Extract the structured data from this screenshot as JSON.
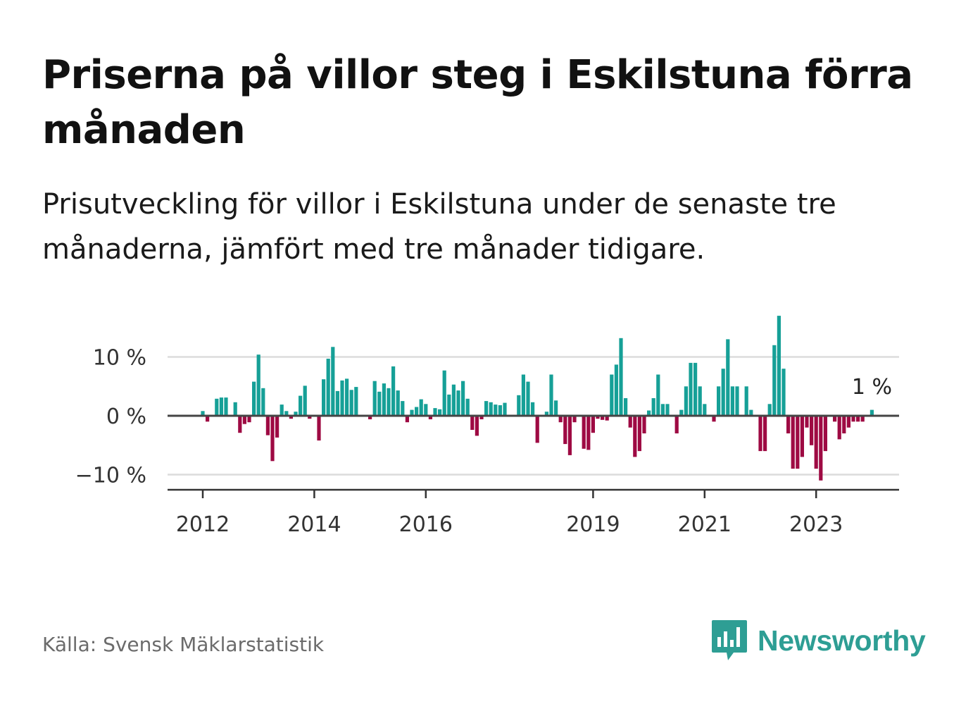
{
  "title": "Priserna på villor steg i Eskilstuna förra månaden",
  "subtitle": "Prisutveckling för villor i Eskilstuna under de senaste tre månaderna, jämfört med tre månader tidigare.",
  "source": "Källa: Svensk Mäklarstatistik",
  "brand": {
    "name": "Newsworthy",
    "icon": "newsworthy-chart-bubble-icon"
  },
  "colors": {
    "positive": "#16a097",
    "negative": "#9e0a43",
    "grid": "#dcdcdc",
    "axis": "#333333",
    "brand": "#2e9e94"
  },
  "chart_data": {
    "type": "bar",
    "x_start": "2012-01",
    "x_end": "2024-07",
    "ylim": [
      -13,
      17.5
    ],
    "yticks": [
      {
        "value": 10,
        "label": "10 %"
      },
      {
        "value": 0,
        "label": "0 %"
      },
      {
        "value": -10,
        "label": "−10 %"
      }
    ],
    "xticks": [
      {
        "date": "2012-01",
        "label": "2012"
      },
      {
        "date": "2014-01",
        "label": "2014"
      },
      {
        "date": "2016-01",
        "label": "2016"
      },
      {
        "date": "2019-01",
        "label": "2019"
      },
      {
        "date": "2021-01",
        "label": "2021"
      },
      {
        "date": "2023-01",
        "label": "2023"
      }
    ],
    "grid": true,
    "annotation": {
      "label": "1 %",
      "date": "2024-01"
    },
    "series": [
      {
        "values": [
          [
            "2012-01",
            0.8
          ],
          [
            "2012-02",
            -1.0
          ],
          [
            "2012-03",
            0.0
          ],
          [
            "2012-04",
            2.9
          ],
          [
            "2012-05",
            3.1
          ],
          [
            "2012-06",
            3.1
          ],
          [
            "2012-07",
            0.0
          ],
          [
            "2012-08",
            2.3
          ],
          [
            "2012-09",
            -2.9
          ],
          [
            "2012-10",
            -1.4
          ],
          [
            "2012-11",
            -1.1
          ],
          [
            "2012-12",
            5.8
          ],
          [
            "2013-01",
            10.4
          ],
          [
            "2013-02",
            4.7
          ],
          [
            "2013-03",
            -3.3
          ],
          [
            "2013-04",
            -7.7
          ],
          [
            "2013-05",
            -3.7
          ],
          [
            "2013-06",
            1.9
          ],
          [
            "2013-07",
            0.8
          ],
          [
            "2013-08",
            -0.5
          ],
          [
            "2013-09",
            0.7
          ],
          [
            "2013-10",
            3.4
          ],
          [
            "2013-11",
            5.1
          ],
          [
            "2013-12",
            -0.5
          ],
          [
            "2014-01",
            0.0
          ],
          [
            "2014-02",
            -4.2
          ],
          [
            "2014-03",
            6.2
          ],
          [
            "2014-04",
            9.7
          ],
          [
            "2014-05",
            11.7
          ],
          [
            "2014-06",
            4.2
          ],
          [
            "2014-07",
            6.0
          ],
          [
            "2014-08",
            6.3
          ],
          [
            "2014-09",
            4.4
          ],
          [
            "2014-10",
            4.9
          ],
          [
            "2014-11",
            0.0
          ],
          [
            "2014-12",
            0.0
          ],
          [
            "2015-01",
            -0.6
          ],
          [
            "2015-02",
            5.9
          ],
          [
            "2015-03",
            4.1
          ],
          [
            "2015-04",
            5.5
          ],
          [
            "2015-05",
            4.7
          ],
          [
            "2015-06",
            8.4
          ],
          [
            "2015-07",
            4.3
          ],
          [
            "2015-08",
            2.5
          ],
          [
            "2015-09",
            -1.1
          ],
          [
            "2015-10",
            1.0
          ],
          [
            "2015-11",
            1.5
          ],
          [
            "2015-12",
            2.8
          ],
          [
            "2016-01",
            2.0
          ],
          [
            "2016-02",
            -0.6
          ],
          [
            "2016-03",
            1.3
          ],
          [
            "2016-04",
            1.1
          ],
          [
            "2016-05",
            7.7
          ],
          [
            "2016-06",
            3.6
          ],
          [
            "2016-07",
            5.3
          ],
          [
            "2016-08",
            4.3
          ],
          [
            "2016-09",
            5.9
          ],
          [
            "2016-10",
            2.9
          ],
          [
            "2016-11",
            -2.4
          ],
          [
            "2016-12",
            -3.4
          ],
          [
            "2017-01",
            -0.6
          ],
          [
            "2017-02",
            2.5
          ],
          [
            "2017-03",
            2.3
          ],
          [
            "2017-04",
            1.9
          ],
          [
            "2017-05",
            1.8
          ],
          [
            "2017-06",
            2.2
          ],
          [
            "2017-07",
            0.0
          ],
          [
            "2017-08",
            0.0
          ],
          [
            "2017-09",
            3.5
          ],
          [
            "2017-10",
            7.0
          ],
          [
            "2017-11",
            5.8
          ],
          [
            "2017-12",
            2.3
          ],
          [
            "2018-01",
            -4.6
          ],
          [
            "2018-02",
            0.0
          ],
          [
            "2018-03",
            0.7
          ],
          [
            "2018-04",
            7.0
          ],
          [
            "2018-05",
            2.6
          ],
          [
            "2018-06",
            -1.1
          ],
          [
            "2018-07",
            -4.8
          ],
          [
            "2018-08",
            -6.7
          ],
          [
            "2018-09",
            -1.1
          ],
          [
            "2018-10",
            0.0
          ],
          [
            "2018-11",
            -5.6
          ],
          [
            "2018-12",
            -5.8
          ],
          [
            "2019-01",
            -2.9
          ],
          [
            "2019-02",
            -0.5
          ],
          [
            "2019-03",
            -0.7
          ],
          [
            "2019-04",
            -0.8
          ],
          [
            "2019-05",
            7.0
          ],
          [
            "2019-06",
            8.7
          ],
          [
            "2019-07",
            13.2
          ],
          [
            "2019-08",
            3.0
          ],
          [
            "2019-09",
            -2.0
          ],
          [
            "2019-10",
            -7.0
          ],
          [
            "2019-11",
            -6.0
          ],
          [
            "2019-12",
            -3.0
          ],
          [
            "2020-01",
            0.9
          ],
          [
            "2020-02",
            3.0
          ],
          [
            "2020-03",
            7.0
          ],
          [
            "2020-04",
            2.0
          ],
          [
            "2020-05",
            2.0
          ],
          [
            "2020-06",
            0.0
          ],
          [
            "2020-07",
            -3.0
          ],
          [
            "2020-08",
            1.0
          ],
          [
            "2020-09",
            5.0
          ],
          [
            "2020-10",
            9.0
          ],
          [
            "2020-11",
            9.0
          ],
          [
            "2020-12",
            5.0
          ],
          [
            "2021-01",
            2.0
          ],
          [
            "2021-02",
            0.0
          ],
          [
            "2021-03",
            -1.0
          ],
          [
            "2021-04",
            5.0
          ],
          [
            "2021-05",
            8.0
          ],
          [
            "2021-06",
            13.0
          ],
          [
            "2021-07",
            5.0
          ],
          [
            "2021-08",
            5.0
          ],
          [
            "2021-09",
            0.0
          ],
          [
            "2021-10",
            5.0
          ],
          [
            "2021-11",
            1.0
          ],
          [
            "2021-12",
            0.0
          ],
          [
            "2022-01",
            -6.0
          ],
          [
            "2022-02",
            -6.0
          ],
          [
            "2022-03",
            2.0
          ],
          [
            "2022-04",
            12.0
          ],
          [
            "2022-05",
            17.0
          ],
          [
            "2022-06",
            8.0
          ],
          [
            "2022-07",
            -3.0
          ],
          [
            "2022-08",
            -9.0
          ],
          [
            "2022-09",
            -9.0
          ],
          [
            "2022-10",
            -7.0
          ],
          [
            "2022-11",
            -2.0
          ],
          [
            "2022-12",
            -5.0
          ],
          [
            "2023-01",
            -9.0
          ],
          [
            "2023-02",
            -11.0
          ],
          [
            "2023-03",
            -6.0
          ],
          [
            "2023-04",
            0.0
          ],
          [
            "2023-05",
            -1.0
          ],
          [
            "2023-06",
            -4.0
          ],
          [
            "2023-07",
            -3.0
          ],
          [
            "2023-08",
            -2.0
          ],
          [
            "2023-09",
            -1.0
          ],
          [
            "2023-10",
            -1.0
          ],
          [
            "2023-11",
            -1.0
          ],
          [
            "2023-12",
            0.0
          ],
          [
            "2024-01",
            1.0
          ]
        ]
      }
    ]
  }
}
